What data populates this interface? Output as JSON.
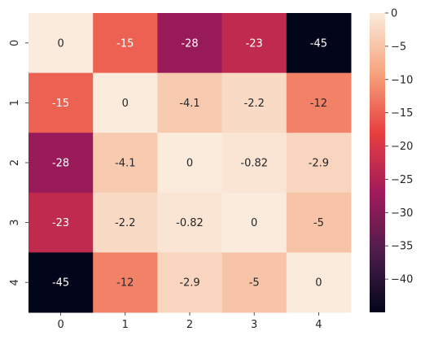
{
  "chart_data": {
    "type": "heatmap",
    "title": "",
    "xlabel": "",
    "ylabel": "",
    "x_categories": [
      "0",
      "1",
      "2",
      "3",
      "4"
    ],
    "y_categories": [
      "0",
      "1",
      "2",
      "3",
      "4"
    ],
    "values": [
      [
        0,
        -15,
        -28,
        -23,
        -45
      ],
      [
        -15,
        0,
        -4.1,
        -2.2,
        -12
      ],
      [
        -28,
        -4.1,
        0,
        -0.82,
        -2.9
      ],
      [
        -23,
        -2.2,
        -0.82,
        0,
        -5
      ],
      [
        -45,
        -12,
        -2.9,
        -5,
        0
      ]
    ],
    "value_labels": [
      [
        "0",
        "-15",
        "-28",
        "-23",
        "-45"
      ],
      [
        "-15",
        "0",
        "-4.1",
        "-2.2",
        "-12"
      ],
      [
        "-28",
        "-4.1",
        "0",
        "-0.82",
        "-2.9"
      ],
      [
        "-23",
        "-2.2",
        "-0.82",
        "0",
        "-5"
      ],
      [
        "-45",
        "-12",
        "-2.9",
        "-5",
        "0"
      ]
    ],
    "colorbar": {
      "vmin": -45,
      "vmax": 0,
      "ticks": [
        0,
        -5,
        -10,
        -15,
        -20,
        -25,
        -30,
        -35,
        -40
      ],
      "tick_labels": [
        "0",
        "−5",
        "−10",
        "−15",
        "−20",
        "−25",
        "−30",
        "−35",
        "−40"
      ],
      "colormap": "rocket",
      "stops": [
        "#03051a",
        "#4c1d4b",
        "#a11a5b",
        "#e83f3f",
        "#f6a47c",
        "#faebdd"
      ]
    },
    "grid": false,
    "legend": "colorbar-right"
  }
}
